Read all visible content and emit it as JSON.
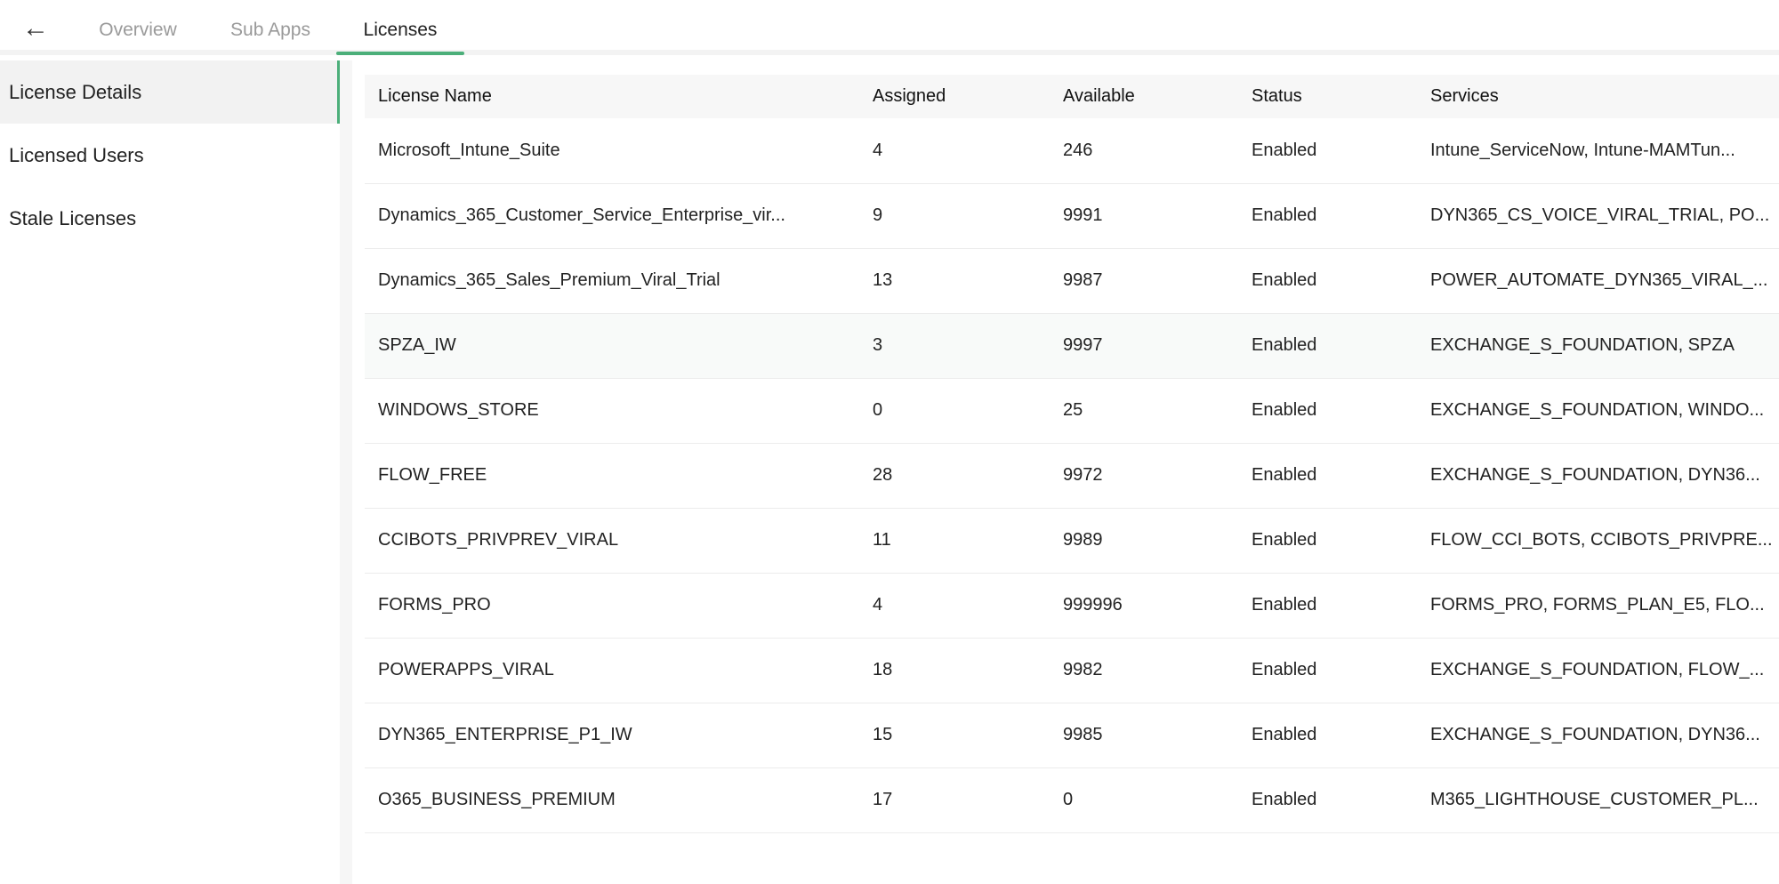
{
  "header": {
    "back_icon": "arrow-left-icon",
    "back_glyph": "←",
    "tabs": [
      {
        "label": "Overview"
      },
      {
        "label": "Sub Apps"
      },
      {
        "label": "Licenses"
      }
    ],
    "active_tab": "Licenses"
  },
  "sidebar": {
    "items": [
      {
        "label": "License Details"
      },
      {
        "label": "Licensed Users"
      },
      {
        "label": "Stale Licenses"
      }
    ],
    "active": "License Details"
  },
  "table": {
    "columns": [
      "License Name",
      "Assigned",
      "Available",
      "Status",
      "Services"
    ],
    "rows": [
      [
        "Microsoft_Intune_Suite",
        "4",
        "246",
        "Enabled",
        "Intune_ServiceNow, Intune-MAMTun..."
      ],
      [
        "Dynamics_365_Customer_Service_Enterprise_vir...",
        "9",
        "9991",
        "Enabled",
        "DYN365_CS_VOICE_VIRAL_TRIAL, PO..."
      ],
      [
        "Dynamics_365_Sales_Premium_Viral_Trial",
        "13",
        "9987",
        "Enabled",
        "POWER_AUTOMATE_DYN365_VIRAL_..."
      ],
      [
        "SPZA_IW",
        "3",
        "9997",
        "Enabled",
        "EXCHANGE_S_FOUNDATION, SPZA"
      ],
      [
        "WINDOWS_STORE",
        "0",
        "25",
        "Enabled",
        "EXCHANGE_S_FOUNDATION, WINDO..."
      ],
      [
        "FLOW_FREE",
        "28",
        "9972",
        "Enabled",
        "EXCHANGE_S_FOUNDATION, DYN36..."
      ],
      [
        "CCIBOTS_PRIVPREV_VIRAL",
        "11",
        "9989",
        "Enabled",
        "FLOW_CCI_BOTS, CCIBOTS_PRIVPRE..."
      ],
      [
        "FORMS_PRO",
        "4",
        "999996",
        "Enabled",
        "FORMS_PRO, FORMS_PLAN_E5, FLO..."
      ],
      [
        "POWERAPPS_VIRAL",
        "18",
        "9982",
        "Enabled",
        "EXCHANGE_S_FOUNDATION, FLOW_..."
      ],
      [
        "DYN365_ENTERPRISE_P1_IW",
        "15",
        "9985",
        "Enabled",
        "EXCHANGE_S_FOUNDATION, DYN36..."
      ],
      [
        "O365_BUSINESS_PREMIUM",
        "17",
        "0",
        "Enabled",
        "M365_LIGHTHOUSE_CUSTOMER_PL..."
      ]
    ]
  },
  "colors": {
    "accent": "#4caf7a"
  }
}
